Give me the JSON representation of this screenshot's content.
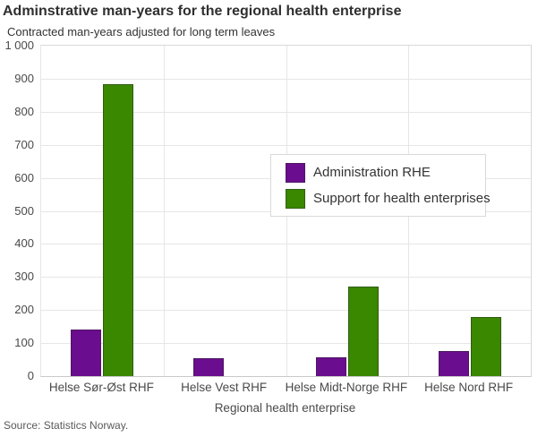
{
  "chart_data": {
    "type": "bar",
    "title": "Adminstrative man-years for the regional health enterprise",
    "subtitle": "Contracted man-years adjusted for long term leaves",
    "xlabel": "Regional health enterprise",
    "ylabel": "",
    "source": "Source: Statistics Norway.",
    "ylim": [
      0,
      1000
    ],
    "grid": true,
    "legend_position": "overlay center-right",
    "categories": [
      "Helse Sør-Øst RHF",
      "Helse Vest RHF",
      "Helse Midt-Norge RHF",
      "Helse Nord RHF"
    ],
    "series": [
      {
        "name": "Administration RHE",
        "color": "#6a0d8e",
        "values": [
          142,
          54,
          58,
          77
        ]
      },
      {
        "name": "Support for health enterprises",
        "color": "#3a8700",
        "values": [
          883,
          0,
          271,
          178
        ]
      }
    ],
    "yticks": {
      "values": [
        0,
        100,
        200,
        300,
        400,
        500,
        600,
        700,
        800,
        900,
        1000
      ],
      "labels": [
        "0",
        "100",
        "200",
        "300",
        "400",
        "500",
        "600",
        "700",
        "800",
        "900",
        "1 000"
      ]
    }
  }
}
